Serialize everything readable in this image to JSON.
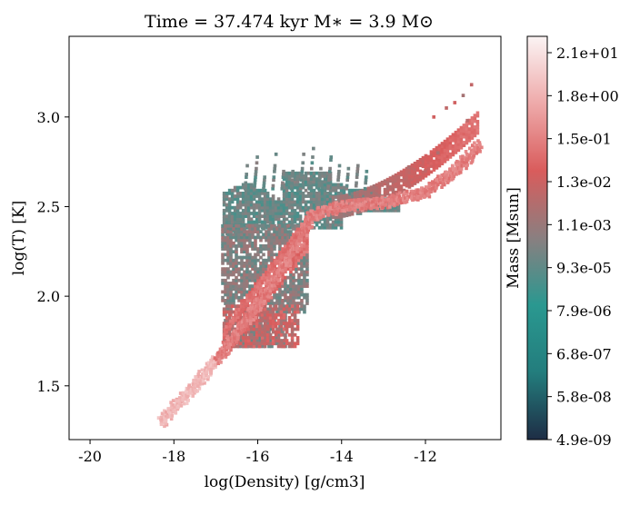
{
  "chart_data": {
    "type": "heatmap",
    "title": "Time = 37.474 kyr    M$_*$ = 3.9 M$_\\odot$",
    "xlabel": "log(Density) [g/cm3]",
    "ylabel": "log(T) [K]",
    "xlim": [
      -20.5,
      -10.2
    ],
    "ylim": [
      1.2,
      3.45
    ],
    "x_ticks": [
      -20,
      -18,
      -16,
      -14,
      -12
    ],
    "y_ticks": [
      1.5,
      2.0,
      2.5,
      3.0
    ],
    "colorbar": {
      "label": "Mass [Msun]",
      "tick_labels": [
        "4.9e-09",
        "5.8e-08",
        "6.8e-07",
        "7.9e-06",
        "9.3e-05",
        "1.1e-03",
        "1.3e-02",
        "1.5e-01",
        "1.8e+00",
        "2.1e+01"
      ],
      "colormap": [
        "#1e2d45",
        "#237d7d",
        "#2a9890",
        "#8a7f80",
        "#d95c5c",
        "#eeaaaa",
        "#fbf4f4"
      ]
    },
    "regions": {
      "main_diagonal": [
        [
          -18.3,
          1.3
        ],
        [
          -17.5,
          1.5
        ],
        [
          -16.8,
          1.7
        ],
        [
          -16.0,
          1.95
        ],
        [
          -15.3,
          2.2
        ],
        [
          -14.7,
          2.45
        ],
        [
          -14.0,
          2.5
        ],
        [
          -13.0,
          2.52
        ],
        [
          -12.0,
          2.58
        ],
        [
          -11.2,
          2.72
        ],
        [
          -10.7,
          2.84
        ]
      ],
      "upper_cloud": [
        [
          -16.8,
          2.65
        ],
        [
          -16.0,
          2.72
        ],
        [
          -15.5,
          2.75
        ],
        [
          -15.0,
          2.8
        ],
        [
          -14.5,
          2.72
        ],
        [
          -14.0,
          2.65
        ],
        [
          -13.5,
          2.62
        ],
        [
          -13.0,
          2.65
        ]
      ],
      "cool_wing": [
        [
          -16.9,
          1.75
        ],
        [
          -16.5,
          1.85
        ],
        [
          -15.5,
          1.95
        ],
        [
          -15.2,
          1.85
        ],
        [
          -15.0,
          1.75
        ]
      ]
    }
  }
}
